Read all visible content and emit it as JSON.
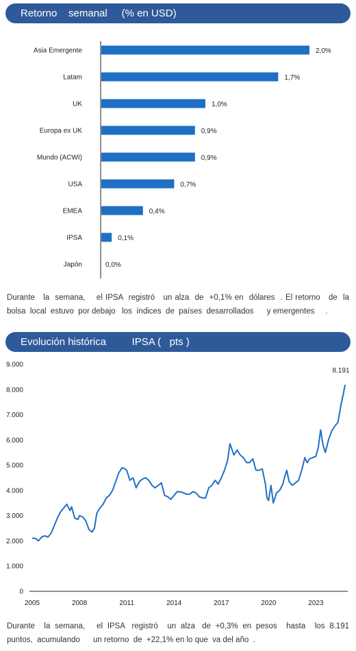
{
  "sections": [
    {
      "title": "Retorno    semanal     (% en USD)",
      "paragraph": "Durante   la  semana,    el IPSA  registró   un alza  de  +0,1% en  dólares  . El retorno   de  la bolsa  local  estuvo  por debajo   los  índices  de  países  desarrollados      y emergentes     ."
    },
    {
      "title": "Evolución histórica         IPSA (   pts )",
      "paragraph": "Durante    la  semana,     el  IPSA   registró    un  alza   de  +0,3%  en  pesos    hasta    los  8.191 puntos,  acumulando      un retorno  de  +22,1% en lo que  va del año  ."
    }
  ],
  "chart_data": [
    {
      "type": "bar",
      "orientation": "horizontal",
      "title": "Retorno    semanal     (% en USD)",
      "categories": [
        "Asia Emergente",
        "Latam",
        "UK",
        "Europa ex UK",
        "Mundo (ACWI)",
        "USA",
        "EMEA",
        "IPSA",
        "Japón"
      ],
      "values": [
        2.0,
        1.7,
        1.0,
        0.9,
        0.9,
        0.7,
        0.4,
        0.1,
        0.0
      ],
      "value_labels": [
        "2,0%",
        "1,7%",
        "1,0%",
        "0,9%",
        "0,9%",
        "0,7%",
        "0,4%",
        "0,1%",
        "0,0%"
      ],
      "xlim": [
        0,
        2.0
      ],
      "bar_color": "#1f6fc4",
      "grid": false
    },
    {
      "type": "line",
      "title": "Evolución histórica         IPSA (   pts )",
      "xlim": [
        2005,
        2024.85
      ],
      "ylim": [
        0,
        9000
      ],
      "x_ticks": [
        2005,
        2008,
        2011,
        2014,
        2017,
        2020,
        2023
      ],
      "x_tick_labels": [
        "2005",
        "2008",
        "2011",
        "2014",
        "2017",
        "2020",
        "2023"
      ],
      "y_ticks": [
        0,
        1000,
        2000,
        3000,
        4000,
        5000,
        6000,
        7000,
        8000,
        9000
      ],
      "y_tick_labels": [
        "0",
        "1.000",
        "2.000",
        "3.000",
        "4.000",
        "5.000",
        "6.000",
        "7.000",
        "8.000",
        "9.000"
      ],
      "line_color": "#1f6fc4",
      "grid": false,
      "end_label": "8.191",
      "series": [
        {
          "x": [
            2005.0,
            2005.2,
            2005.4,
            2005.6,
            2005.8,
            2006.0,
            2006.2,
            2006.4,
            2006.6,
            2006.8,
            2007.0,
            2007.2,
            2007.4,
            2007.5,
            2007.7,
            2007.9,
            2008.0,
            2008.2,
            2008.4,
            2008.6,
            2008.8,
            2008.95,
            2009.1,
            2009.3,
            2009.5,
            2009.7,
            2009.9,
            2010.1,
            2010.3,
            2010.5,
            2010.7,
            2010.9,
            2011.0,
            2011.2,
            2011.4,
            2011.6,
            2011.8,
            2012.0,
            2012.2,
            2012.4,
            2012.6,
            2012.8,
            2013.0,
            2013.2,
            2013.4,
            2013.6,
            2013.8,
            2014.0,
            2014.2,
            2014.4,
            2014.6,
            2014.8,
            2015.0,
            2015.2,
            2015.4,
            2015.6,
            2015.8,
            2016.0,
            2016.2,
            2016.4,
            2016.6,
            2016.8,
            2017.0,
            2017.2,
            2017.4,
            2017.55,
            2017.8,
            2018.0,
            2018.2,
            2018.4,
            2018.6,
            2018.8,
            2019.0,
            2019.2,
            2019.4,
            2019.6,
            2019.8,
            2019.9,
            2020.0,
            2020.15,
            2020.3,
            2020.5,
            2020.7,
            2020.9,
            2021.0,
            2021.15,
            2021.3,
            2021.5,
            2021.7,
            2021.9,
            2022.1,
            2022.3,
            2022.45,
            2022.6,
            2022.8,
            2023.0,
            2023.15,
            2023.3,
            2023.45,
            2023.6,
            2023.8,
            2024.0,
            2024.2,
            2024.4,
            2024.6,
            2024.75,
            2024.85
          ],
          "y": [
            2100,
            2100,
            2000,
            2150,
            2200,
            2150,
            2300,
            2600,
            2900,
            3150,
            3300,
            3450,
            3200,
            3350,
            2900,
            2850,
            3000,
            2950,
            2800,
            2450,
            2350,
            2500,
            3100,
            3300,
            3450,
            3700,
            3800,
            4000,
            4350,
            4700,
            4900,
            4850,
            4800,
            4400,
            4500,
            4100,
            4350,
            4450,
            4500,
            4400,
            4200,
            4100,
            4200,
            4300,
            3800,
            3750,
            3650,
            3800,
            3950,
            3950,
            3900,
            3850,
            3850,
            3950,
            3900,
            3750,
            3700,
            3700,
            4100,
            4200,
            4400,
            4250,
            4500,
            4800,
            5200,
            5850,
            5400,
            5600,
            5400,
            5300,
            5100,
            5100,
            5250,
            4800,
            4800,
            4850,
            4250,
            3700,
            3600,
            4200,
            3500,
            3900,
            4000,
            4250,
            4500,
            4800,
            4350,
            4200,
            4300,
            4400,
            4800,
            5300,
            5100,
            5250,
            5300,
            5350,
            5700,
            6400,
            5800,
            5500,
            6000,
            6350,
            6550,
            6700,
            7400,
            7850,
            8191
          ]
        }
      ]
    }
  ]
}
